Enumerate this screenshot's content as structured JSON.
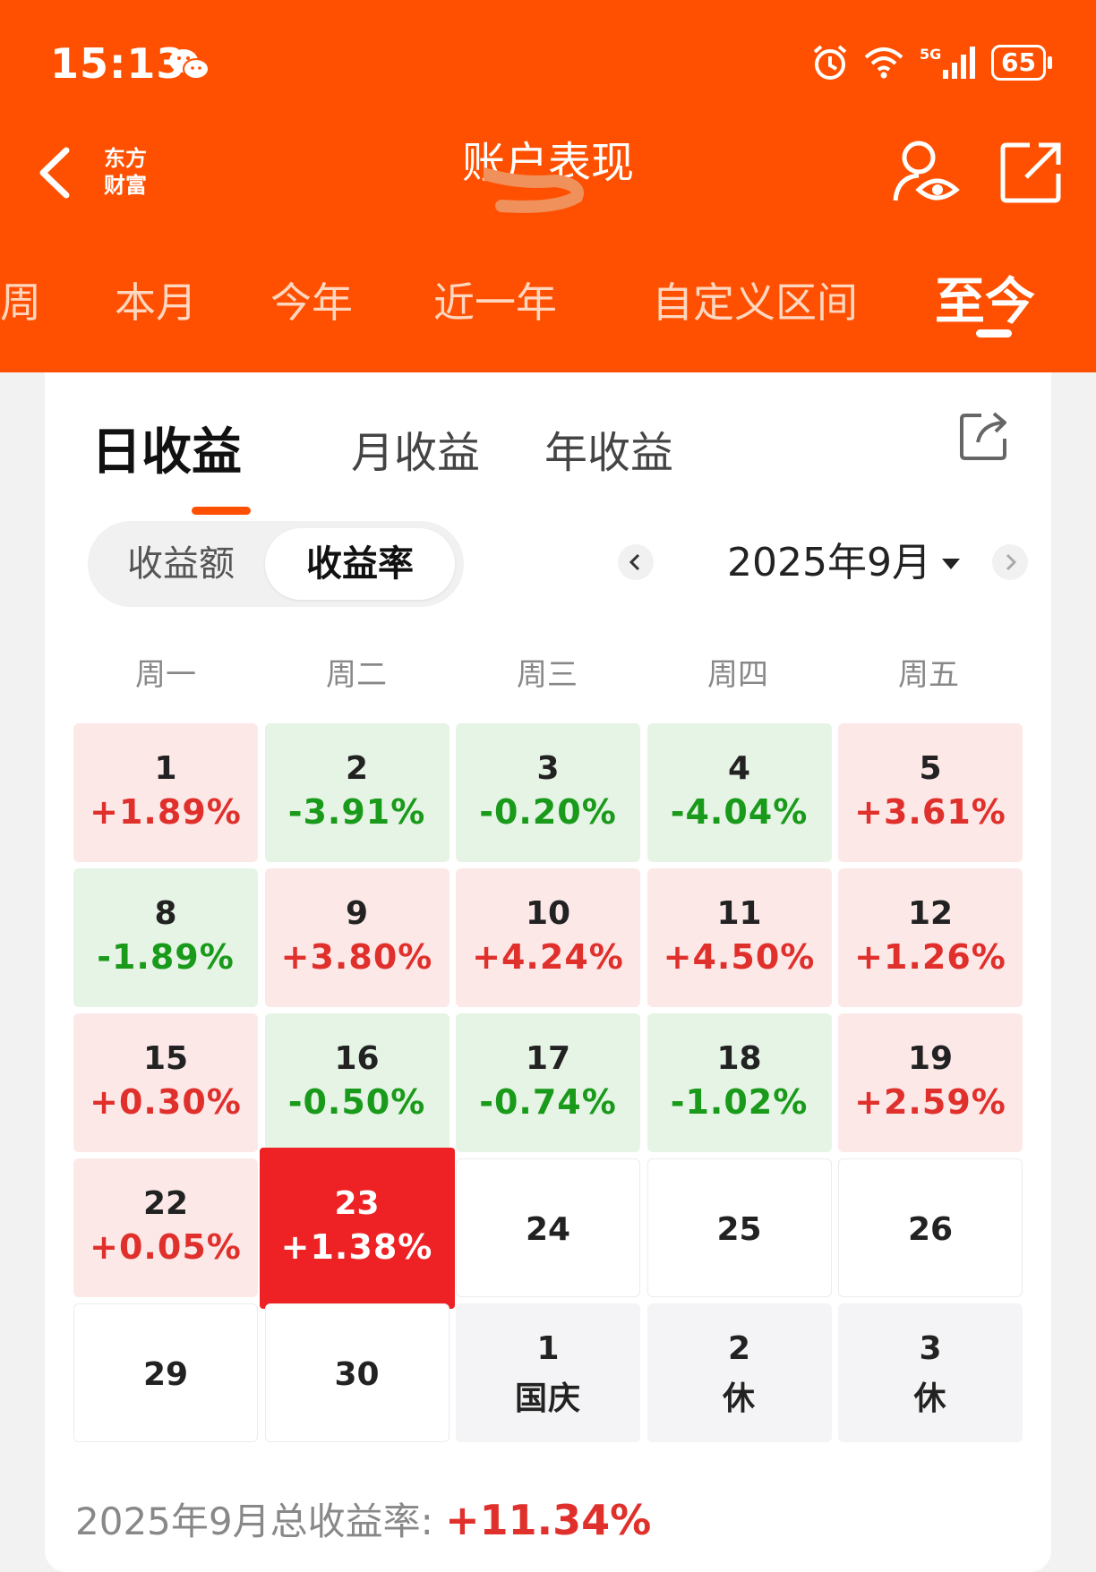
{
  "status_bar": {
    "time": "15:13",
    "battery": "65",
    "network": "5G"
  },
  "header": {
    "title": "账户表现",
    "logo_line1": "东方",
    "logo_line2": "财富"
  },
  "periods": [
    "周",
    "本月",
    "今年",
    "近一年",
    "自定义区间",
    "至今"
  ],
  "active_period": "至今",
  "tabs": [
    "日收益",
    "月收益",
    "年收益"
  ],
  "active_tab": "日收益",
  "segment": {
    "amount": "收益额",
    "rate": "收益率",
    "active": "收益率"
  },
  "month_selector": {
    "label": "2025年9月"
  },
  "weekdays": [
    "周一",
    "周二",
    "周三",
    "周四",
    "周五"
  ],
  "calendar": [
    [
      {
        "day": "1",
        "value": "+1.89%",
        "state": "up"
      },
      {
        "day": "2",
        "value": "-3.91%",
        "state": "down"
      },
      {
        "day": "3",
        "value": "-0.20%",
        "state": "down"
      },
      {
        "day": "4",
        "value": "-4.04%",
        "state": "down"
      },
      {
        "day": "5",
        "value": "+3.61%",
        "state": "up"
      }
    ],
    [
      {
        "day": "8",
        "value": "-1.89%",
        "state": "down"
      },
      {
        "day": "9",
        "value": "+3.80%",
        "state": "up"
      },
      {
        "day": "10",
        "value": "+4.24%",
        "state": "up"
      },
      {
        "day": "11",
        "value": "+4.50%",
        "state": "up"
      },
      {
        "day": "12",
        "value": "+1.26%",
        "state": "up"
      }
    ],
    [
      {
        "day": "15",
        "value": "+0.30%",
        "state": "up"
      },
      {
        "day": "16",
        "value": "-0.50%",
        "state": "down"
      },
      {
        "day": "17",
        "value": "-0.74%",
        "state": "down"
      },
      {
        "day": "18",
        "value": "-1.02%",
        "state": "down"
      },
      {
        "day": "19",
        "value": "+2.59%",
        "state": "up"
      }
    ],
    [
      {
        "day": "22",
        "value": "+0.05%",
        "state": "up"
      },
      {
        "day": "23",
        "value": "+1.38%",
        "state": "today"
      },
      {
        "day": "24",
        "value": "",
        "state": "empty"
      },
      {
        "day": "25",
        "value": "",
        "state": "empty"
      },
      {
        "day": "26",
        "value": "",
        "state": "empty"
      }
    ],
    [
      {
        "day": "29",
        "value": "",
        "state": "empty"
      },
      {
        "day": "30",
        "value": "",
        "state": "empty"
      },
      {
        "day": "1",
        "value": "国庆",
        "state": "hol"
      },
      {
        "day": "2",
        "value": "休",
        "state": "hol"
      },
      {
        "day": "3",
        "value": "休",
        "state": "hol"
      }
    ]
  ],
  "summary": {
    "label": "2025年9月总收益率: ",
    "value": "+11.34%"
  },
  "colors": {
    "brand": "#fe5000",
    "up": "#e0302c",
    "down": "#1a9a1a",
    "today": "#ee2124"
  }
}
